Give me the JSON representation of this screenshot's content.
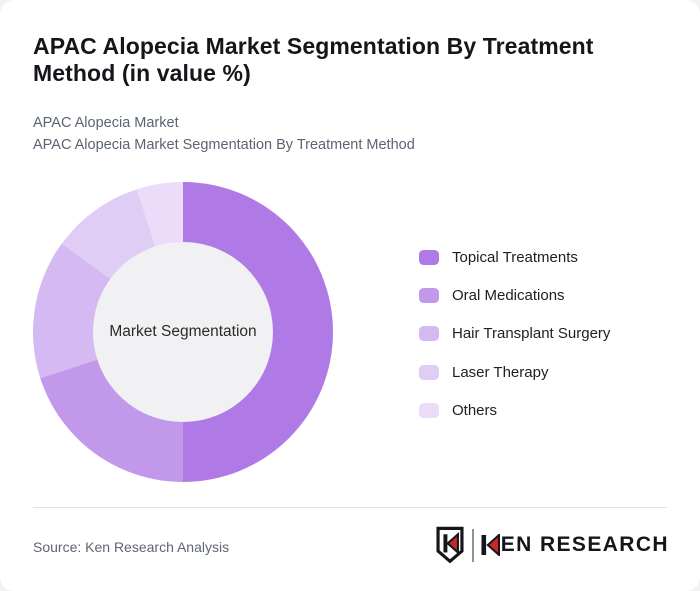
{
  "card": {
    "title": "APAC Alopecia Market Segmentation By Treatment Method (in value %)",
    "subtitle_line1": "APAC Alopecia Market",
    "subtitle_line2": "APAC Alopecia Market Segmentation By Treatment Method"
  },
  "chart_data": {
    "type": "pie",
    "variant": "donut",
    "title": "APAC Alopecia Market Segmentation By Treatment Method (in value %)",
    "center_label": "Market Segmentation",
    "categories": [
      "Topical Treatments",
      "Oral Medications",
      "Hair Transplant Surgery",
      "Laser Therapy",
      "Others"
    ],
    "values": [
      50,
      20,
      15,
      10,
      5
    ],
    "unit": "value %",
    "colors": [
      "#af7ae5",
      "#c298eb",
      "#d5b9f2",
      "#e0cdf6",
      "#ebddfa"
    ],
    "inner_circle_color": "#f1f0f2",
    "start_angle_deg": 0,
    "direction": "clockwise",
    "legend_position": "right"
  },
  "footer": {
    "source": "Source: Ken Research Analysis",
    "logo": {
      "brand": "KEN RESEARCH",
      "accent_color": "#c8252c",
      "text_color": "#14161a"
    }
  }
}
